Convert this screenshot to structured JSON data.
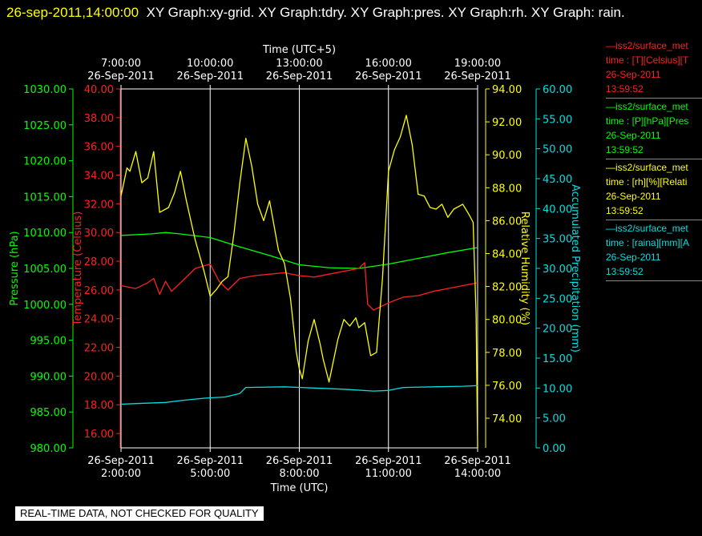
{
  "title": {
    "datetime": "26-sep-2011,14:00:00",
    "text": "XY Graph:xy-grid.  XY Graph:tdry.  XY Graph:pres.  XY Graph:rh.  XY Graph: rain."
  },
  "notice": "REAL-TIME DATA, NOT CHECKED FOR QUALITY",
  "legend": [
    {
      "color": "#ff2020",
      "line": "—iss2/surface_met",
      "field": "time : [T][Celsius][T",
      "date": "26-Sep-2011",
      "time": "13:59:52"
    },
    {
      "color": "#00ff00",
      "line": "—iss2/surface_met",
      "field": "time : [P][hPa][Pres",
      "date": "26-Sep-2011",
      "time": "13:59:52"
    },
    {
      "color": "#ffff00",
      "line": "—iss2/surface_met",
      "field": "time : [rh][%][Relati",
      "date": "26-Sep-2011",
      "time": "13:59:52"
    },
    {
      "color": "#00e0e0",
      "line": "—iss2/surface_met",
      "field": "time : [raina][mm][A",
      "date": "26-Sep-2011",
      "time": "13:59:52"
    }
  ],
  "chart_data": {
    "type": "line",
    "colors": {
      "pressure": "#00ff00",
      "temperature": "#ff2020",
      "humidity": "#ffff00",
      "precipitation": "#00e0e0",
      "grid": "#ffffff"
    },
    "grid": true,
    "xlabel": "Time (UTC)",
    "xlabel_top": "Time (UTC+5)",
    "xlim": [
      "2011-09-26 02:00",
      "2011-09-26 14:00"
    ],
    "x_ticks": [
      {
        "date": "26-Sep-2011",
        "time": "2:00:00"
      },
      {
        "date": "26-Sep-2011",
        "time": "5:00:00"
      },
      {
        "date": "26-Sep-2011",
        "time": "8:00:00"
      },
      {
        "date": "26-Sep-2011",
        "time": "11:00:00"
      },
      {
        "date": "26-Sep-2011",
        "time": "14:00:00"
      }
    ],
    "x_ticks_top": [
      {
        "date": "26-Sep-2011",
        "time": "7:00:00"
      },
      {
        "date": "26-Sep-2011",
        "time": "10:00:00"
      },
      {
        "date": "26-Sep-2011",
        "time": "13:00:00"
      },
      {
        "date": "26-Sep-2011",
        "time": "16:00:00"
      },
      {
        "date": "26-Sep-2011",
        "time": "19:00:00"
      }
    ],
    "axes": {
      "pressure": {
        "label": "Pressure (hPa)",
        "ylim": [
          980,
          1030
        ],
        "ticks": [
          "1030.00",
          "1025.00",
          "1020.00",
          "1015.00",
          "1010.00",
          "1005.00",
          "1000.00",
          "995.00",
          "990.00",
          "985.00",
          "980.00"
        ]
      },
      "temperature": {
        "label": "Temperature (Celsius)",
        "ylim": [
          15,
          40
        ],
        "ticks": [
          "40.00",
          "38.00",
          "36.00",
          "34.00",
          "32.00",
          "30.00",
          "28.00",
          "26.00",
          "24.00",
          "22.00",
          "20.00",
          "18.00",
          "16.00"
        ]
      },
      "humidity": {
        "label": "Relative Humidity (%)",
        "ylim": [
          72.2,
          94
        ],
        "ticks": [
          "94.00",
          "92.00",
          "90.00",
          "88.00",
          "86.00",
          "84.00",
          "82.00",
          "80.00",
          "78.00",
          "76.00",
          "74.00"
        ]
      },
      "precipitation": {
        "label": "Accumulated Precipitation (mm)",
        "ylim": [
          0,
          60
        ],
        "ticks": [
          "60.00",
          "55.00",
          "50.00",
          "45.00",
          "40.00",
          "35.00",
          "30.00",
          "25.00",
          "20.00",
          "15.00",
          "10.00",
          "5.00",
          "0.00"
        ]
      }
    },
    "series": [
      {
        "name": "pressure",
        "axis": "pressure",
        "color": "#00ff00",
        "x": [
          2.0,
          3.0,
          3.5,
          4.0,
          5.0,
          6.0,
          7.0,
          8.0,
          9.0,
          10.0,
          11.0,
          12.0,
          13.0,
          14.0
        ],
        "y": [
          1009.6,
          1009.8,
          1010.0,
          1009.8,
          1009.3,
          1008.0,
          1006.8,
          1005.5,
          1005.1,
          1005.0,
          1005.6,
          1006.4,
          1007.2,
          1007.9
        ]
      },
      {
        "name": "temperature",
        "axis": "temperature",
        "color": "#ff2020",
        "x": [
          2.0,
          2.5,
          2.9,
          3.1,
          3.3,
          3.5,
          3.7,
          4.0,
          4.5,
          5.0,
          5.3,
          5.6,
          6.0,
          6.5,
          7.0,
          7.5,
          8.0,
          8.5,
          9.0,
          9.5,
          10.0,
          10.2,
          10.3,
          10.5,
          11.0,
          11.5,
          12.0,
          12.5,
          13.0,
          13.5,
          14.0
        ],
        "y": [
          26.3,
          26.1,
          26.5,
          26.8,
          25.7,
          26.6,
          25.9,
          26.5,
          27.5,
          27.8,
          26.6,
          26.0,
          26.8,
          27.0,
          27.1,
          27.2,
          27.0,
          26.9,
          27.1,
          27.3,
          27.5,
          27.9,
          25.0,
          24.6,
          25.1,
          25.5,
          25.6,
          25.9,
          26.1,
          26.3,
          26.5
        ]
      },
      {
        "name": "humidity",
        "axis": "humidity",
        "color": "#ffff00",
        "x": [
          2.0,
          2.2,
          2.3,
          2.5,
          2.7,
          2.9,
          3.1,
          3.3,
          3.6,
          3.8,
          4.0,
          4.2,
          4.5,
          4.8,
          5.0,
          5.2,
          5.4,
          5.6,
          5.8,
          6.0,
          6.2,
          6.4,
          6.6,
          6.8,
          7.0,
          7.3,
          7.5,
          7.7,
          7.9,
          8.0,
          8.1,
          8.3,
          8.5,
          8.7,
          8.8,
          9.0,
          9.3,
          9.5,
          9.7,
          9.9,
          10.0,
          10.2,
          10.4,
          10.6,
          10.8,
          11.0,
          11.2,
          11.4,
          11.6,
          11.8,
          12.0,
          12.2,
          12.4,
          12.6,
          12.8,
          13.0,
          13.2,
          13.5,
          13.7,
          13.85,
          13.95,
          14.0
        ],
        "y": [
          87.5,
          89.2,
          89.0,
          90.2,
          88.3,
          88.6,
          90.2,
          86.5,
          86.8,
          87.7,
          89.0,
          87.2,
          84.8,
          82.9,
          81.4,
          81.8,
          82.3,
          82.6,
          85.2,
          88.3,
          91.0,
          89.3,
          87.0,
          86.0,
          87.2,
          84.2,
          83.4,
          81.3,
          78.0,
          77.0,
          76.4,
          78.7,
          80.0,
          78.5,
          77.6,
          76.2,
          78.8,
          80.0,
          79.6,
          80.1,
          79.5,
          79.8,
          77.8,
          78.0,
          82.5,
          89.0,
          90.3,
          91.1,
          92.4,
          90.6,
          87.6,
          87.5,
          86.8,
          86.7,
          87.0,
          86.2,
          86.7,
          87.0,
          86.4,
          85.9,
          80.3,
          72.2
        ]
      },
      {
        "name": "precipitation",
        "axis": "precipitation",
        "color": "#00e0e0",
        "x": [
          2.0,
          2.5,
          3.5,
          4.0,
          4.8,
          5.5,
          6.0,
          6.2,
          7.5,
          8.5,
          9.5,
          10.5,
          11.0,
          11.5,
          12.5,
          13.5,
          14.0
        ],
        "y": [
          7.3,
          7.4,
          7.6,
          7.9,
          8.3,
          8.5,
          9.1,
          10.1,
          10.2,
          10.0,
          9.8,
          9.5,
          9.6,
          10.1,
          10.2,
          10.3,
          10.4
        ]
      }
    ]
  }
}
